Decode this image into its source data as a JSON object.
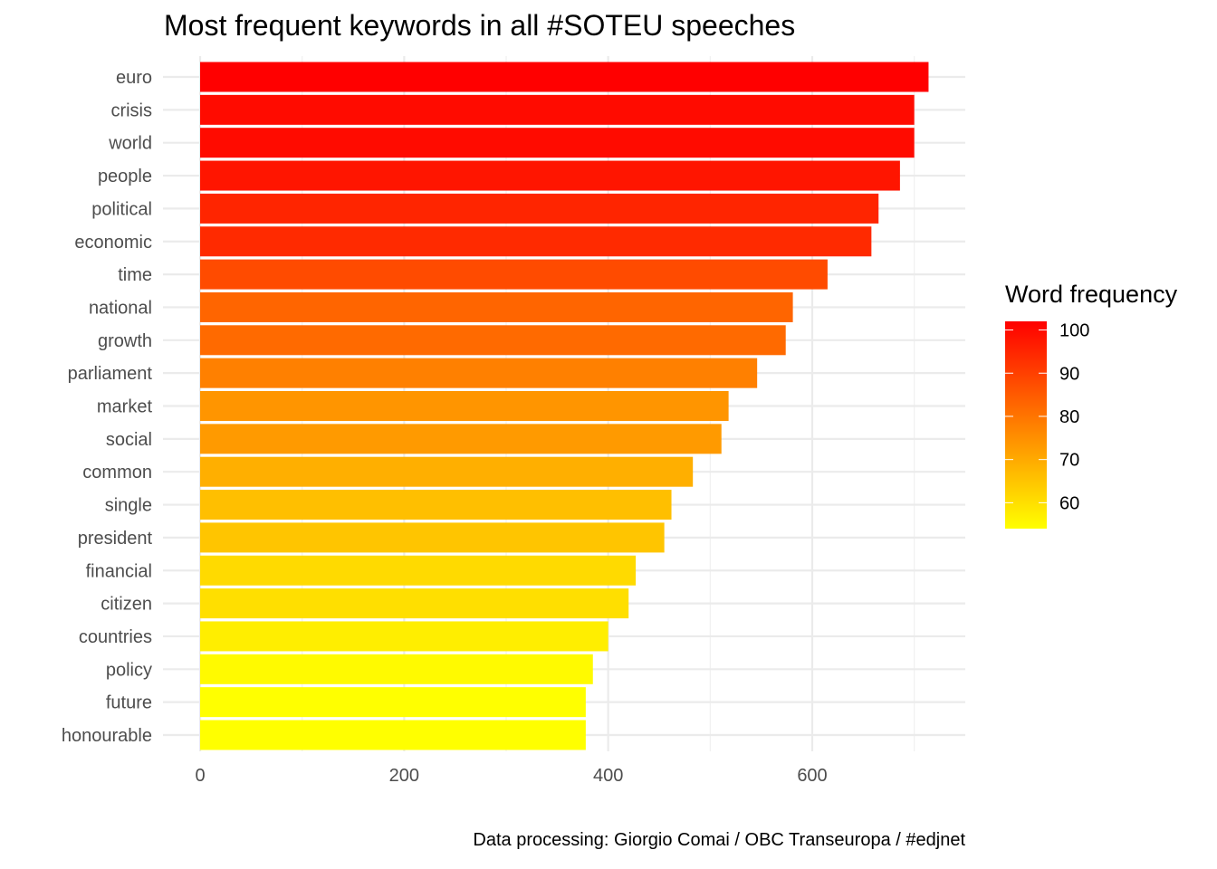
{
  "chart_data": {
    "type": "bar",
    "orientation": "horizontal",
    "title": "Most frequent keywords in all #SOTEU speeches",
    "caption": "Data processing:  Giorgio Comai / OBC Transeuropa / #edjnet",
    "xlabel": "",
    "ylabel": "",
    "xlim": [
      0,
      750
    ],
    "x_ticks": [
      0,
      200,
      400,
      600
    ],
    "x_tick_labels": [
      "0",
      "200",
      "400",
      "600"
    ],
    "grid": true,
    "categories": [
      "euro",
      "crisis",
      "world",
      "people",
      "political",
      "economic",
      "time",
      "national",
      "growth",
      "parliament",
      "market",
      "social",
      "common",
      "single",
      "president",
      "financial",
      "citizen",
      "countries",
      "policy",
      "future",
      "honourable"
    ],
    "values": [
      714,
      700,
      700,
      686,
      665,
      658,
      615,
      581,
      574,
      546,
      518,
      511,
      483,
      462,
      455,
      427,
      420,
      400,
      385,
      378,
      378
    ],
    "legend": {
      "title": "Word frequency",
      "placement": "right",
      "range": [
        54,
        102
      ],
      "ticks": [
        60,
        70,
        80,
        90,
        100
      ],
      "tick_labels": [
        "60",
        "70",
        "80",
        "90",
        "100"
      ],
      "low_color": "#FFFF00",
      "high_color": "#FF0000"
    }
  }
}
